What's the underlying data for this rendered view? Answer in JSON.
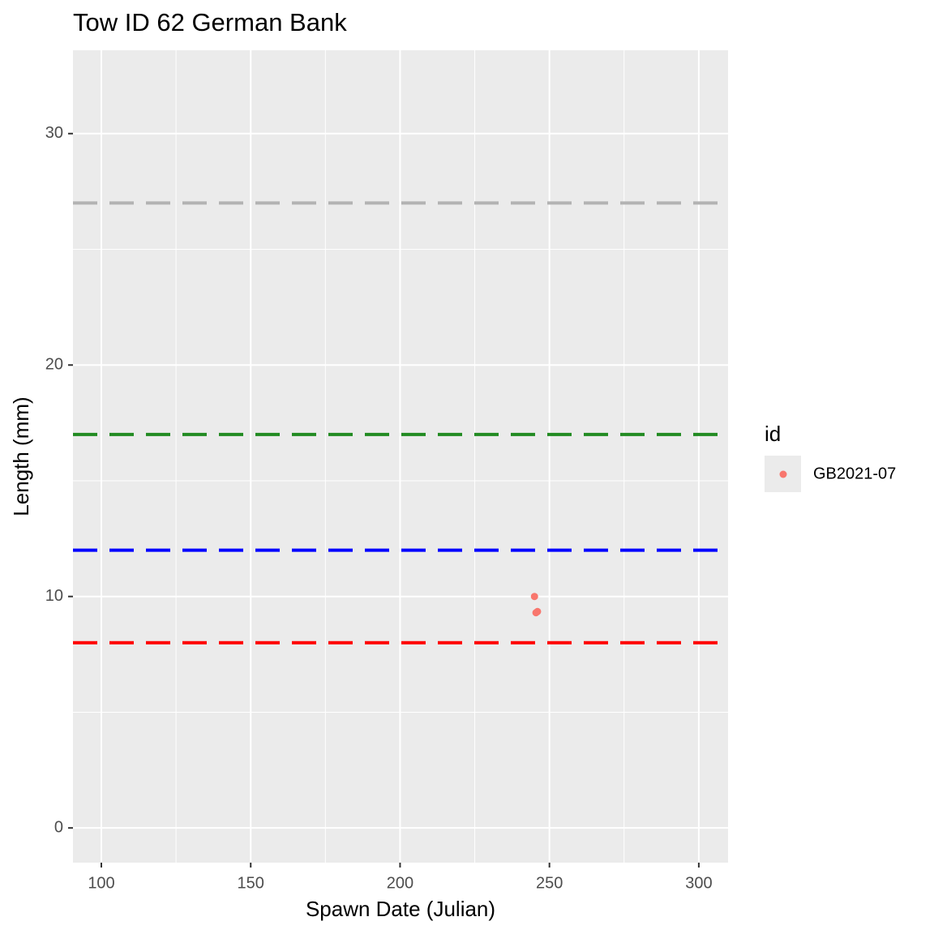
{
  "chart_data": {
    "type": "scatter",
    "title": "Tow ID 62 German Bank",
    "x_label": "Spawn Date (Julian)",
    "y_label": "Length (mm)",
    "legend_title": "id",
    "legend_position": "right",
    "series": [
      {
        "name": "GB2021-07",
        "color": "#f8766d",
        "x": [
          245,
          245.5,
          246
        ],
        "values": [
          10,
          9.3,
          9.35
        ]
      }
    ],
    "hlines": [
      {
        "value": 27,
        "color": "#b3b3b3"
      },
      {
        "value": 17,
        "color": "#228b22"
      },
      {
        "value": 12,
        "color": "#0000ff"
      },
      {
        "value": 8,
        "color": "#ff0000"
      }
    ],
    "xlim": [
      90.5,
      309.8
    ],
    "ylim": [
      -1.5,
      33.6
    ],
    "xticks": [
      100,
      150,
      200,
      250,
      300
    ],
    "yticks": [
      0,
      10,
      20,
      30
    ],
    "x_minor_grid": [
      125,
      175,
      225,
      275
    ],
    "y_minor_grid": [
      5,
      15,
      25
    ],
    "grid": true
  }
}
